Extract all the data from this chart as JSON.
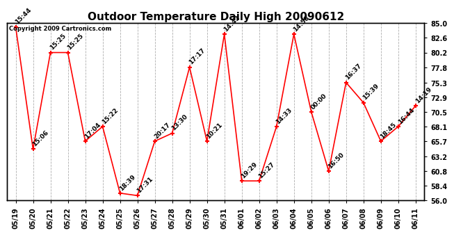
{
  "title": "Outdoor Temperature Daily High 20090612",
  "copyright": "Copyright 2009 Cartronics.com",
  "dates": [
    "05/19",
    "05/20",
    "05/21",
    "05/22",
    "05/23",
    "05/24",
    "05/25",
    "05/26",
    "05/27",
    "05/28",
    "05/29",
    "05/30",
    "05/31",
    "06/01",
    "06/02",
    "06/03",
    "06/04",
    "06/05",
    "06/06",
    "06/07",
    "06/08",
    "06/09",
    "06/10",
    "06/11"
  ],
  "values": [
    84.4,
    64.4,
    80.2,
    80.2,
    65.7,
    68.1,
    57.2,
    56.8,
    65.7,
    67.0,
    77.8,
    65.7,
    83.2,
    59.2,
    59.2,
    68.1,
    83.2,
    70.5,
    60.8,
    75.3,
    72.0,
    65.7,
    68.1,
    71.5
  ],
  "times": [
    "15:44",
    "15:06",
    "15:25",
    "15:25",
    "17:04",
    "15:22",
    "18:39",
    "17:31",
    "20:17",
    "13:30",
    "17:17",
    "10:21",
    "14:42",
    "19:29",
    "15:27",
    "14:33",
    "14:58",
    "00:00",
    "16:50",
    "16:37",
    "15:39",
    "18:45",
    "16:44",
    "14:19"
  ],
  "ylim": [
    56.0,
    85.0
  ],
  "yticks": [
    56.0,
    58.4,
    60.8,
    63.2,
    65.7,
    68.1,
    70.5,
    72.9,
    75.3,
    77.8,
    80.2,
    82.6,
    85.0
  ],
  "line_color": "red",
  "marker_color": "red",
  "bg_color": "white",
  "grid_color": "#999999",
  "title_fontsize": 11,
  "annotation_fontsize": 6.5,
  "tick_fontsize": 7,
  "copyright_fontsize": 6
}
